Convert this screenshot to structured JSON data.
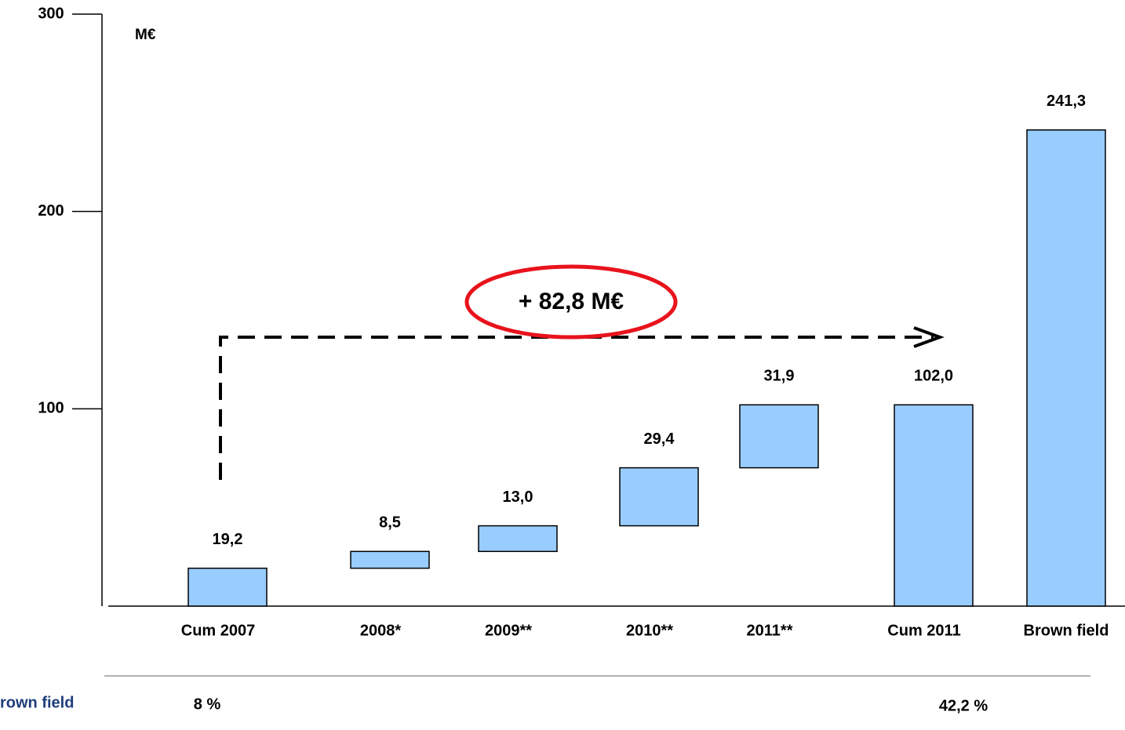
{
  "chart_data": {
    "type": "waterfall",
    "unit_label": "M€",
    "annotation": "+ 82,8 M€",
    "categories": [
      "Cum 2007",
      "2008*",
      "2009**",
      "2010**",
      "2011**",
      "Cum 2011",
      "Brown field"
    ],
    "values": [
      19.2,
      8.5,
      13.0,
      29.4,
      31.9,
      102.0,
      241.3
    ],
    "value_labels": [
      "19,2",
      "8,5",
      "13,0",
      "29,4",
      "31,9",
      "102,0",
      "241,3"
    ],
    "total": [
      false,
      false,
      false,
      false,
      false,
      true,
      true
    ],
    "color": "#99ccff",
    "ylim": [
      0,
      300
    ],
    "yticks": [
      100,
      200,
      300
    ]
  },
  "footer": {
    "label": "rown  field",
    "cells": [
      "8 %",
      "42,2 %"
    ]
  }
}
